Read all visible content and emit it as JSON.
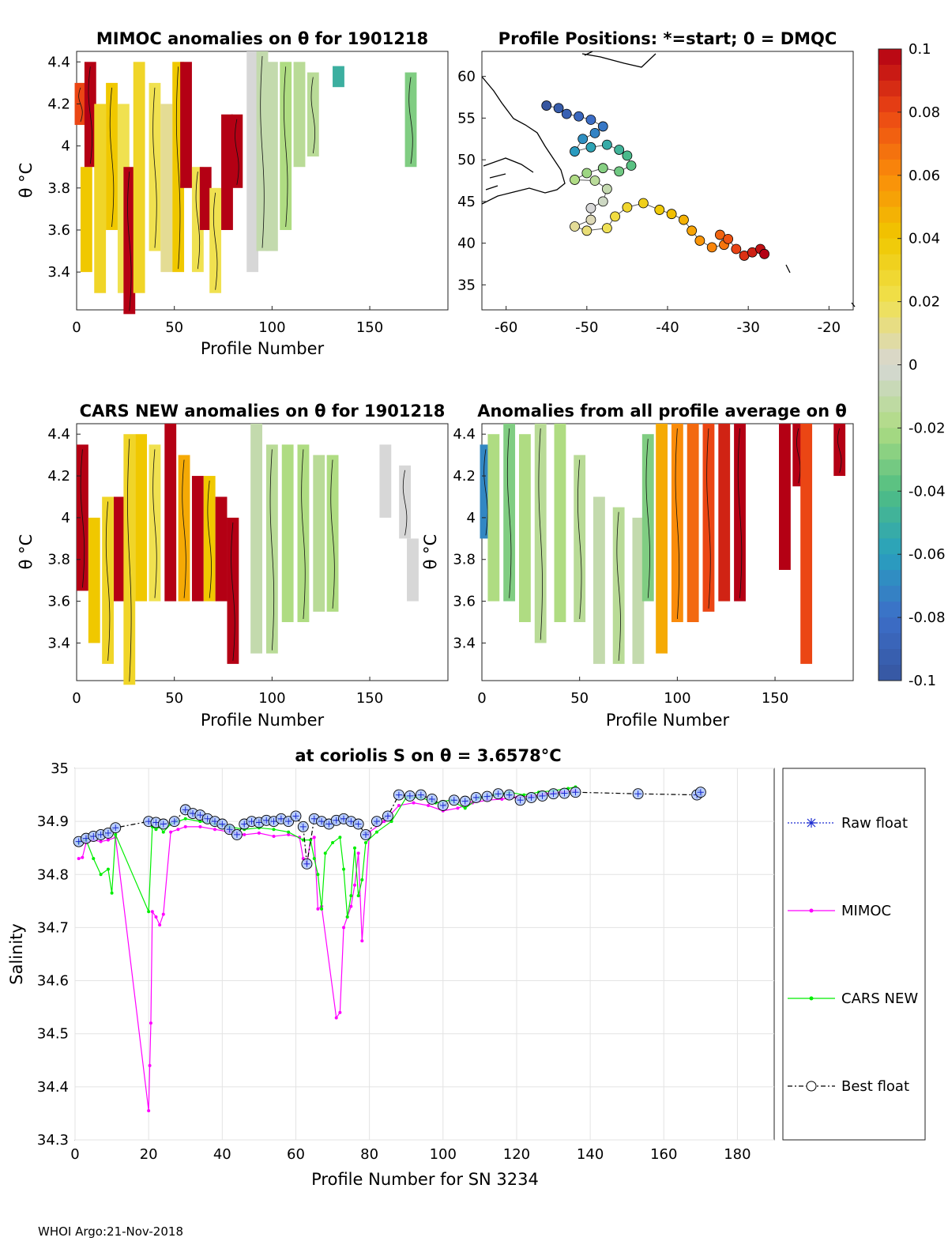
{
  "footer": "WHOI Argo:21-Nov-2018",
  "chart_data": [
    {
      "type": "heatmap",
      "title": "MIMOC anomalies on θ  for 1901218",
      "xlabel": "Profile Number",
      "ylabel": "θ °C",
      "xlim": [
        0,
        190
      ],
      "ylim": [
        3.22,
        4.45
      ],
      "xticks": [
        "0",
        "50",
        "100",
        "150"
      ],
      "yticks": [
        "3.4",
        "3.6",
        "3.8",
        "4",
        "4.2",
        "4.4"
      ],
      "anomaly_cells": [
        [
          2,
          4.1,
          4.3,
          0.08
        ],
        [
          5,
          3.4,
          3.9,
          0.04
        ],
        [
          7,
          3.9,
          4.4,
          0.1
        ],
        [
          12,
          3.3,
          4.2,
          0.03
        ],
        [
          18,
          3.6,
          4.3,
          0.04
        ],
        [
          24,
          3.3,
          4.2,
          0.02
        ],
        [
          27,
          3.2,
          3.9,
          0.1
        ],
        [
          32,
          3.3,
          4.4,
          0.03
        ],
        [
          40,
          3.5,
          4.3,
          0.02
        ],
        [
          46,
          3.4,
          4.2,
          0.01
        ],
        [
          52,
          3.4,
          4.4,
          0.04
        ],
        [
          56,
          3.8,
          4.4,
          0.1
        ],
        [
          62,
          3.4,
          3.9,
          0.02
        ],
        [
          66,
          3.6,
          3.9,
          0.1
        ],
        [
          71,
          3.3,
          3.8,
          0.02
        ],
        [
          77,
          3.6,
          4.15,
          0.1
        ],
        [
          82,
          3.8,
          4.15,
          0.1
        ],
        [
          90,
          3.4,
          4.45,
          0.0
        ],
        [
          95,
          3.5,
          4.45,
          -0.01
        ],
        [
          100,
          3.5,
          4.4,
          -0.01
        ],
        [
          107,
          3.6,
          4.4,
          -0.02
        ],
        [
          114,
          3.9,
          4.4,
          -0.015
        ],
        [
          121,
          3.95,
          4.35,
          -0.015
        ],
        [
          134,
          4.28,
          4.38,
          -0.05
        ],
        [
          171,
          3.9,
          4.35,
          -0.03
        ]
      ]
    },
    {
      "type": "scatter",
      "title": "Profile Positions: *=start; 0 = DMQC",
      "xlim": [
        -63,
        -17
      ],
      "ylim": [
        32,
        63
      ],
      "xticks": [
        "-60",
        "-50",
        "-40",
        "-30",
        "-20"
      ],
      "yticks": [
        "35",
        "40",
        "45",
        "50",
        "55",
        "60"
      ],
      "track": [
        [
          -55,
          56.5
        ],
        [
          -53.5,
          56.2
        ],
        [
          -52.5,
          55.5
        ],
        [
          -51,
          55.2
        ],
        [
          -49.5,
          54.8
        ],
        [
          -48,
          54.0
        ],
        [
          -49,
          53.2
        ],
        [
          -50.5,
          52.5
        ],
        [
          -51.5,
          51.0
        ],
        [
          -49.5,
          51.5
        ],
        [
          -47.5,
          51.8
        ],
        [
          -46,
          51.2
        ],
        [
          -45,
          50.5
        ],
        [
          -44.5,
          49.3
        ],
        [
          -46,
          48.6
        ],
        [
          -48,
          49.0
        ],
        [
          -50,
          48.4
        ],
        [
          -51.5,
          47.6
        ],
        [
          -49,
          47.5
        ],
        [
          -47.5,
          46.5
        ],
        [
          -48,
          45.0
        ],
        [
          -49.5,
          44.2
        ],
        [
          -49.5,
          42.8
        ],
        [
          -51.5,
          42.0
        ],
        [
          -50,
          41.5
        ],
        [
          -47.5,
          41.8
        ],
        [
          -46.5,
          43.2
        ],
        [
          -45,
          44.3
        ],
        [
          -43,
          44.8
        ],
        [
          -41,
          44.0
        ],
        [
          -39.5,
          43.5
        ],
        [
          -38,
          42.8
        ],
        [
          -37,
          41.5
        ],
        [
          -36,
          40.3
        ],
        [
          -34.5,
          39.5
        ],
        [
          -33,
          39.8
        ],
        [
          -33.5,
          41.0
        ],
        [
          -32.5,
          40.5
        ],
        [
          -31.5,
          39.3
        ],
        [
          -30.5,
          38.5
        ],
        [
          -29.5,
          38.9
        ],
        [
          -28.5,
          39.3
        ],
        [
          -28.0,
          38.7
        ]
      ],
      "color_scale": {
        "min": -0.1,
        "max": 0.1,
        "ticks": [
          "0.1",
          "0.08",
          "0.06",
          "0.04",
          "0.02",
          "0",
          "-0.02",
          "-0.04",
          "-0.06",
          "-0.08",
          "-0.1"
        ]
      }
    },
    {
      "type": "heatmap",
      "title": "CARS NEW anomalies on θ for 1901218",
      "xlabel": "Profile Number",
      "ylabel": "θ °C",
      "xlim": [
        0,
        190
      ],
      "ylim": [
        3.22,
        4.45
      ],
      "xticks": [
        "0",
        "50",
        "100",
        "150"
      ],
      "yticks": [
        "3.4",
        "3.6",
        "3.8",
        "4",
        "4.2",
        "4.4"
      ],
      "anomaly_cells": [
        [
          3,
          3.65,
          4.35,
          0.1
        ],
        [
          9,
          3.4,
          4.0,
          0.04
        ],
        [
          16,
          3.3,
          4.1,
          0.03
        ],
        [
          22,
          3.6,
          4.1,
          0.1
        ],
        [
          27,
          3.2,
          4.4,
          0.03
        ],
        [
          33,
          3.6,
          4.4,
          0.04
        ],
        [
          40,
          3.6,
          4.35,
          0.02
        ],
        [
          48,
          3.6,
          4.45,
          0.1
        ],
        [
          55,
          3.6,
          4.3,
          0.05
        ],
        [
          62,
          3.6,
          4.2,
          0.1
        ],
        [
          68,
          3.6,
          4.2,
          0.04
        ],
        [
          74,
          3.6,
          4.1,
          0.1
        ],
        [
          80,
          3.3,
          4.0,
          0.1
        ],
        [
          92,
          3.35,
          4.45,
          -0.01
        ],
        [
          100,
          3.35,
          4.35,
          -0.015
        ],
        [
          108,
          3.5,
          4.35,
          -0.02
        ],
        [
          116,
          3.5,
          4.35,
          -0.02
        ],
        [
          124,
          3.55,
          4.3,
          -0.015
        ],
        [
          131,
          3.55,
          4.3,
          -0.02
        ],
        [
          158,
          4.0,
          4.35,
          0.0
        ],
        [
          168,
          3.9,
          4.25,
          0.0
        ],
        [
          172,
          3.6,
          3.9,
          0.0
        ]
      ]
    },
    {
      "type": "heatmap",
      "title": "Anomalies from all profile average on θ",
      "xlabel": "Profile Number",
      "ylabel": "θ °C",
      "xlim": [
        0,
        190
      ],
      "ylim": [
        3.22,
        4.45
      ],
      "xticks": [
        "0",
        "50",
        "100",
        "150"
      ],
      "yticks": [
        "3.4",
        "3.6",
        "3.8",
        "4",
        "4.2",
        "4.4"
      ],
      "anomaly_cells": [
        [
          2,
          3.9,
          4.35,
          -0.07
        ],
        [
          6,
          3.6,
          4.4,
          -0.02
        ],
        [
          14,
          3.6,
          4.45,
          -0.03
        ],
        [
          22,
          3.5,
          4.4,
          -0.02
        ],
        [
          30,
          3.4,
          4.45,
          -0.015
        ],
        [
          40,
          3.5,
          4.45,
          -0.02
        ],
        [
          50,
          3.5,
          4.3,
          -0.015
        ],
        [
          60,
          3.3,
          4.1,
          -0.01
        ],
        [
          70,
          3.3,
          4.05,
          -0.015
        ],
        [
          80,
          3.3,
          4.0,
          -0.01
        ],
        [
          85,
          3.6,
          4.4,
          -0.03
        ],
        [
          92,
          3.35,
          4.45,
          0.05
        ],
        [
          100,
          3.5,
          4.45,
          0.06
        ],
        [
          108,
          3.5,
          4.45,
          0.07
        ],
        [
          116,
          3.55,
          4.45,
          0.08
        ],
        [
          124,
          3.6,
          4.45,
          0.09
        ],
        [
          132,
          3.6,
          4.45,
          0.1
        ],
        [
          155,
          3.75,
          4.45,
          0.1
        ],
        [
          162,
          4.15,
          4.45,
          0.1
        ],
        [
          166,
          3.3,
          4.45,
          0.08
        ],
        [
          183,
          4.2,
          4.45,
          0.1
        ]
      ]
    },
    {
      "type": "line",
      "title": "at coriolis S on θ = 3.6578°C",
      "xlabel": "Profile Number for SN 3234",
      "ylabel": "Salinity",
      "xlim": [
        0,
        190
      ],
      "ylim": [
        34.3,
        35.0
      ],
      "xticks": [
        "0",
        "20",
        "40",
        "60",
        "80",
        "100",
        "120",
        "140",
        "160",
        "180"
      ],
      "yticks": [
        "34.3",
        "34.4",
        "34.5",
        "34.6",
        "34.7",
        "34.8",
        "34.9",
        "35"
      ],
      "legend": [
        "Raw float",
        "MIMOC",
        "CARS NEW",
        "Best float"
      ],
      "series": [
        {
          "name": "Best float",
          "x": [
            1,
            3,
            5,
            7,
            9,
            11,
            20,
            22,
            24,
            27,
            30,
            32,
            34,
            36,
            38,
            40,
            42,
            44,
            46,
            48,
            50,
            52,
            54,
            56,
            58,
            60,
            62,
            63,
            65,
            67,
            69,
            71,
            73,
            75,
            77,
            79,
            82,
            85,
            88,
            91,
            94,
            97,
            100,
            103,
            106,
            109,
            112,
            115,
            118,
            121,
            124,
            127,
            130,
            133,
            136,
            153,
            169,
            170
          ],
          "values": [
            34.862,
            34.868,
            34.872,
            34.875,
            34.878,
            34.888,
            34.9,
            34.898,
            34.895,
            34.9,
            34.922,
            34.915,
            34.912,
            34.905,
            34.9,
            34.895,
            34.885,
            34.875,
            34.895,
            34.9,
            34.898,
            34.902,
            34.9,
            34.905,
            34.9,
            34.91,
            34.89,
            34.82,
            34.905,
            34.9,
            34.895,
            34.902,
            34.905,
            34.9,
            34.895,
            34.875,
            34.9,
            34.91,
            34.95,
            34.948,
            34.95,
            34.942,
            34.93,
            34.94,
            34.938,
            34.945,
            34.947,
            34.952,
            34.95,
            34.94,
            34.945,
            34.948,
            34.952,
            34.953,
            34.955,
            34.952,
            34.95,
            34.955
          ]
        },
        {
          "name": "MIMOC",
          "x": [
            1,
            2,
            3,
            5,
            7,
            9,
            11,
            20,
            20.3,
            20.6,
            21,
            22,
            23,
            24,
            26,
            28,
            30,
            34,
            38,
            42,
            46,
            50,
            54,
            58,
            61,
            62,
            63,
            64,
            65,
            66,
            67,
            71,
            72,
            73,
            74,
            75,
            76,
            77,
            78,
            80,
            84,
            88,
            92,
            96,
            100,
            104,
            108,
            112,
            116,
            120,
            124,
            128,
            132,
            136
          ],
          "values": [
            34.83,
            34.832,
            34.86,
            34.865,
            34.862,
            34.865,
            34.87,
            34.355,
            34.44,
            34.52,
            34.73,
            34.72,
            34.705,
            34.725,
            34.88,
            34.885,
            34.89,
            34.89,
            34.885,
            34.88,
            34.875,
            34.878,
            34.872,
            34.875,
            34.87,
            34.83,
            34.82,
            34.865,
            34.87,
            34.735,
            34.74,
            34.53,
            34.54,
            34.7,
            34.72,
            34.74,
            34.78,
            34.84,
            34.675,
            34.88,
            34.9,
            34.93,
            34.935,
            34.93,
            34.92,
            34.925,
            34.935,
            34.94,
            34.942,
            34.945,
            34.948,
            34.952,
            34.955,
            34.958
          ]
        },
        {
          "name": "CARS NEW",
          "x": [
            1,
            3,
            5,
            7,
            9,
            10,
            11,
            20,
            21,
            22,
            23,
            24,
            26,
            28,
            30,
            34,
            38,
            42,
            46,
            50,
            54,
            58,
            62,
            64,
            65,
            66,
            67,
            68,
            70,
            72,
            73,
            74,
            75,
            76,
            77,
            78,
            79,
            82,
            86,
            90,
            94,
            98,
            102,
            106,
            110,
            114,
            118,
            122,
            126,
            130,
            134,
            136
          ],
          "values": [
            34.86,
            34.865,
            34.83,
            34.8,
            34.81,
            34.765,
            34.875,
            34.73,
            34.89,
            34.885,
            34.89,
            34.88,
            34.895,
            34.9,
            34.905,
            34.9,
            34.895,
            34.89,
            34.885,
            34.888,
            34.885,
            34.88,
            34.865,
            34.865,
            34.83,
            34.8,
            34.735,
            34.84,
            34.86,
            34.87,
            34.81,
            34.72,
            34.76,
            34.85,
            34.76,
            34.79,
            34.86,
            34.88,
            34.9,
            34.945,
            34.945,
            34.935,
            34.94,
            34.925,
            34.945,
            34.95,
            34.955,
            34.95,
            34.955,
            34.958,
            34.962,
            34.965
          ]
        }
      ]
    }
  ]
}
